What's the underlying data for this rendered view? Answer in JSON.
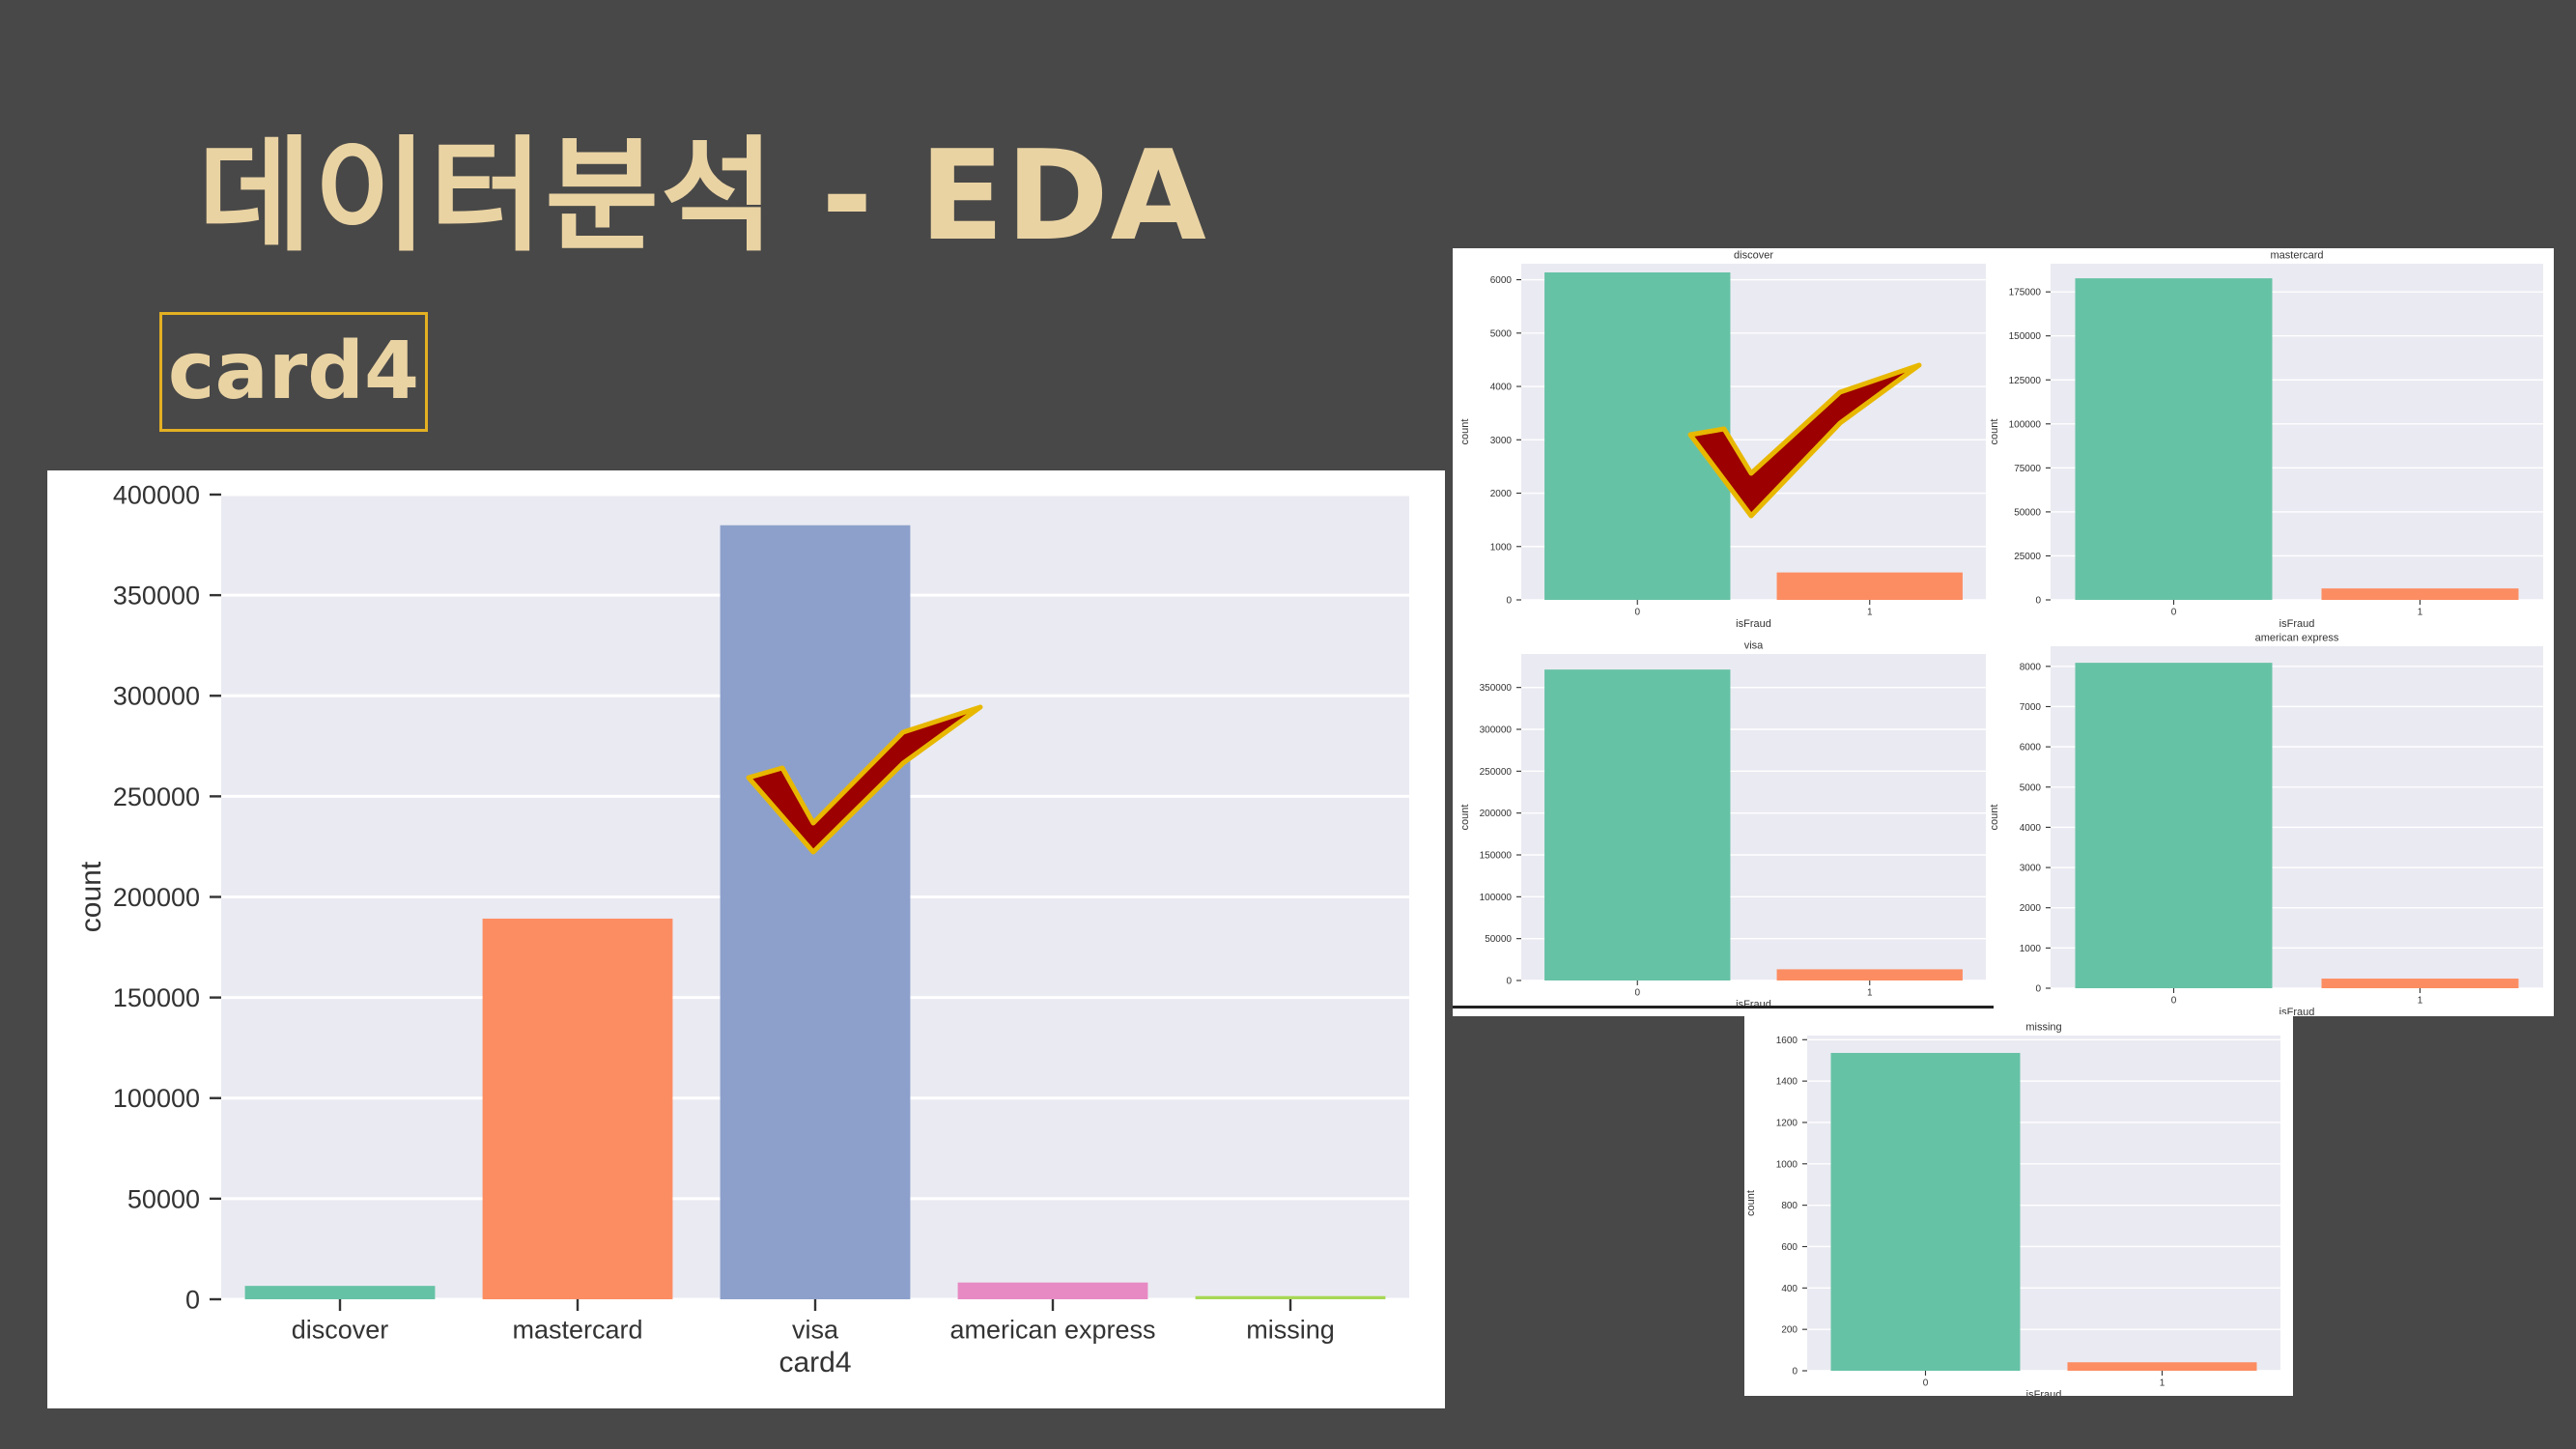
{
  "slide": {
    "title": "데이터분석 - EDA",
    "tag": "card4"
  },
  "colors": {
    "background": "#484848",
    "title": "#ead3a3",
    "tag_border": "#e3b022",
    "plot_bg": "#eaeaf2",
    "checkmark_fill": "#9c0000",
    "checkmark_outline": "#e8b800"
  },
  "chart_data": [
    {
      "type": "bar",
      "xlabel": "card4",
      "ylabel": "count",
      "categories": [
        "discover",
        "mastercard",
        "visa",
        "american express",
        "missing"
      ],
      "values": [
        6651,
        189217,
        384767,
        8328,
        1577
      ],
      "colors": [
        "#66c2a5",
        "#fc8d62",
        "#8da0cb",
        "#e78ac3",
        "#a6d854"
      ],
      "ylim": [
        0,
        400000
      ],
      "yticks": [
        0,
        50000,
        100000,
        150000,
        200000,
        250000,
        300000,
        350000,
        400000
      ],
      "grid": true,
      "annotation": "checkmark over visa"
    },
    {
      "type": "bar",
      "title": "discover",
      "xlabel": "isFraud",
      "ylabel": "count",
      "categories": [
        "0",
        "1"
      ],
      "values": [
        6137,
        514
      ],
      "colors": [
        "#66c2a5",
        "#fc8d62"
      ],
      "ylim": [
        0,
        6300
      ],
      "yticks": [
        0,
        1000,
        2000,
        3000,
        4000,
        5000,
        6000
      ],
      "grid": true,
      "annotation": "checkmark"
    },
    {
      "type": "bar",
      "title": "mastercard",
      "xlabel": "isFraud",
      "ylabel": "count",
      "categories": [
        "0",
        "1"
      ],
      "values": [
        182721,
        6496
      ],
      "colors": [
        "#66c2a5",
        "#fc8d62"
      ],
      "ylim": [
        0,
        191000
      ],
      "yticks": [
        0,
        25000,
        50000,
        75000,
        100000,
        125000,
        150000,
        175000
      ],
      "grid": true
    },
    {
      "type": "bar",
      "title": "visa",
      "xlabel": "isFraud",
      "ylabel": "count",
      "categories": [
        "0",
        "1"
      ],
      "values": [
        371394,
        13373
      ],
      "colors": [
        "#66c2a5",
        "#fc8d62"
      ],
      "ylim": [
        0,
        390000
      ],
      "yticks": [
        0,
        50000,
        100000,
        150000,
        200000,
        250000,
        300000,
        350000
      ],
      "grid": true
    },
    {
      "type": "bar",
      "title": "american express",
      "xlabel": "isFraud",
      "ylabel": "count",
      "categories": [
        "0",
        "1"
      ],
      "values": [
        8089,
        239
      ],
      "colors": [
        "#66c2a5",
        "#fc8d62"
      ],
      "ylim": [
        0,
        8500
      ],
      "yticks": [
        0,
        1000,
        2000,
        3000,
        4000,
        5000,
        6000,
        7000,
        8000
      ],
      "grid": true
    },
    {
      "type": "bar",
      "title": "missing",
      "xlabel": "isFraud",
      "ylabel": "count",
      "categories": [
        "0",
        "1"
      ],
      "values": [
        1536,
        41
      ],
      "colors": [
        "#66c2a5",
        "#fc8d62"
      ],
      "ylim": [
        0,
        1620
      ],
      "yticks": [
        0,
        200,
        400,
        600,
        800,
        1000,
        1200,
        1400,
        1600
      ],
      "grid": true
    }
  ]
}
